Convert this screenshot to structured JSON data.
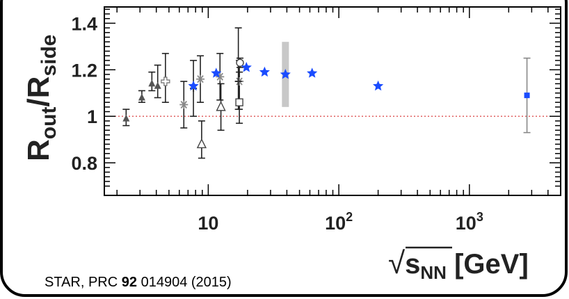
{
  "chart_data": {
    "type": "scatter",
    "title": "",
    "ylabel": {
      "main1": "R",
      "sub1": "out",
      "slash": "/",
      "main2": "R",
      "sub2": "side"
    },
    "xlabel": {
      "root": "√",
      "main": "s",
      "sub": "NN",
      "unit": " [GeV]"
    },
    "xscale": "log",
    "xlim": [
      1.6,
      5000
    ],
    "ylim": [
      0.66,
      1.47
    ],
    "grid": false,
    "reference_line": {
      "y": 1.0,
      "color": "#e06060",
      "style": "dotted"
    },
    "x_ticks": [
      {
        "value": 10,
        "base": "10",
        "exp": ""
      },
      {
        "value": 100,
        "base": "10",
        "exp": "2"
      },
      {
        "value": 1000,
        "base": "10",
        "exp": "3"
      }
    ],
    "y_ticks": [
      {
        "value": 0.8,
        "label": "0.8"
      },
      {
        "value": 1.0,
        "label": "1"
      },
      {
        "value": 1.2,
        "label": "1.2"
      },
      {
        "value": 1.4,
        "label": "1.4"
      }
    ],
    "series": [
      {
        "marker": "triangle-filled",
        "color": "#555555",
        "points": [
          {
            "x": 2.35,
            "y": 0.99,
            "lo": 0.96,
            "hi": 1.03
          },
          {
            "x": 3.1,
            "y": 1.08,
            "lo": 1.06,
            "hi": 1.11
          },
          {
            "x": 3.7,
            "y": 1.14,
            "lo": 1.11,
            "hi": 1.19
          },
          {
            "x": 4.1,
            "y": 1.13,
            "lo": 1.08,
            "hi": 1.22
          }
        ]
      },
      {
        "marker": "cross-open",
        "color": "#777777",
        "points": [
          {
            "x": 4.7,
            "y": 1.15,
            "lo": 1.06,
            "hi": 1.27
          }
        ]
      },
      {
        "marker": "star-gray",
        "color": "#888888",
        "points": [
          {
            "x": 6.5,
            "y": 1.05,
            "lo": 0.95,
            "hi": 1.15
          },
          {
            "x": 8.7,
            "y": 1.16,
            "lo": 1.06,
            "hi": 1.26
          },
          {
            "x": 12.3,
            "y": 1.17,
            "lo": 1.07,
            "hi": 1.27
          },
          {
            "x": 17.3,
            "y": 1.15,
            "lo": 1.03,
            "hi": 1.24
          }
        ]
      },
      {
        "marker": "cross-black",
        "color": "#333333",
        "points": [
          {
            "x": 7.7,
            "y": 1.12,
            "lo": 1.0,
            "hi": 1.24
          },
          {
            "x": 17.0,
            "y": 1.15,
            "lo": 1.03,
            "hi": 1.38
          }
        ]
      },
      {
        "marker": "triangle-open",
        "color": "#444444",
        "points": [
          {
            "x": 8.9,
            "y": 0.88,
            "lo": 0.82,
            "hi": 0.98
          },
          {
            "x": 12.5,
            "y": 1.04,
            "lo": 0.94,
            "hi": 1.14
          }
        ]
      },
      {
        "marker": "square-open",
        "color": "#444444",
        "points": [
          {
            "x": 17.3,
            "y": 1.06,
            "lo": 0.97,
            "hi": 1.19
          }
        ]
      },
      {
        "marker": "circle-open",
        "color": "#444444",
        "points": [
          {
            "x": 17.5,
            "y": 1.23,
            "lo": 1.21,
            "hi": 1.25
          }
        ]
      },
      {
        "marker": "star-blue",
        "color": "#1a4cff",
        "points": [
          {
            "x": 7.7,
            "y": 1.13,
            "lo": 1.13,
            "hi": 1.13
          },
          {
            "x": 11.5,
            "y": 1.185,
            "lo": 1.185,
            "hi": 1.185
          },
          {
            "x": 19.6,
            "y": 1.21,
            "lo": 1.21,
            "hi": 1.21
          },
          {
            "x": 27,
            "y": 1.19,
            "lo": 1.19,
            "hi": 1.19
          },
          {
            "x": 39,
            "y": 1.18,
            "lo": 1.04,
            "hi": 1.32,
            "band": true
          },
          {
            "x": 62.4,
            "y": 1.185,
            "lo": 1.185,
            "hi": 1.185
          },
          {
            "x": 200,
            "y": 1.13,
            "lo": 1.13,
            "hi": 1.13
          }
        ]
      },
      {
        "marker": "square-blue",
        "color": "#1a4cff",
        "points": [
          {
            "x": 2760,
            "y": 1.09,
            "lo": 0.93,
            "hi": 1.25
          }
        ]
      }
    ],
    "citation": {
      "pre": "STAR, PRC ",
      "bold": "92",
      "post": " 014904 (2015)"
    }
  }
}
